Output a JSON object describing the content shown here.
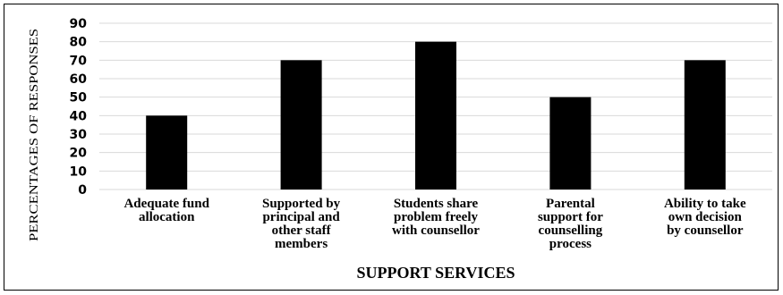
{
  "chart_data": {
    "type": "bar",
    "categories": [
      [
        "Adequate fund",
        "allocation"
      ],
      [
        "Supported by",
        "principal and",
        "other staff",
        "members"
      ],
      [
        "Students share",
        "problem freely",
        "with counsellor"
      ],
      [
        "Parental",
        "support for",
        "counselling",
        "process"
      ],
      [
        "Ability to take",
        "own decision",
        "by counsellor"
      ]
    ],
    "values": [
      40,
      70,
      80,
      50,
      70
    ],
    "xlabel": "SUPPORT SERVICES",
    "ylabel": "PERCENTAGES OF RESPONSES",
    "ylim": [
      0,
      90
    ],
    "yticks": [
      0,
      10,
      20,
      30,
      40,
      50,
      60,
      70,
      80,
      90
    ],
    "grid": true,
    "bar_color": "#000000",
    "grid_color": "#d9d9d9"
  }
}
